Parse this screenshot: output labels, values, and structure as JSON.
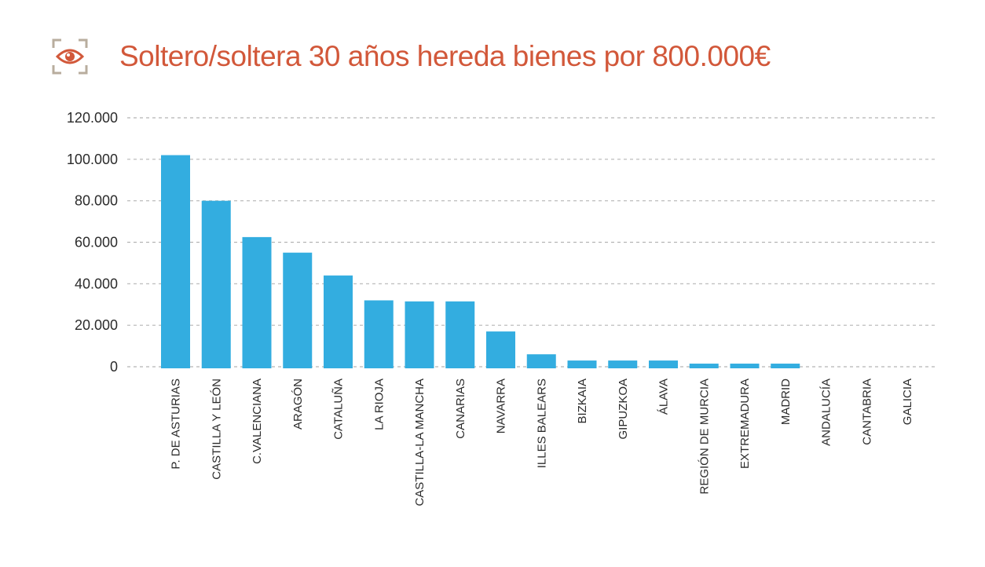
{
  "header": {
    "icon": "eye-icon",
    "title": "Soltero/soltera 30 años hereda bienes por 800.000€"
  },
  "colors": {
    "title": "#d2583a",
    "bar": "#33ade0",
    "grid": "#b5b5b5",
    "icon": "#d2583a",
    "icon_frame": "#b8ad9e"
  },
  "chart_data": {
    "type": "bar",
    "title": "Soltero/soltera 30 años hereda bienes por 800.000€",
    "xlabel": "",
    "ylabel": "",
    "ylim": [
      0,
      120000
    ],
    "yticks": [
      0,
      20000,
      40000,
      60000,
      80000,
      100000,
      120000
    ],
    "ytick_labels": [
      "0",
      "20.000",
      "40.000",
      "60.000",
      "80.000",
      "100.000",
      "120.000"
    ],
    "grid": true,
    "categories": [
      "P. DE ASTURIAS",
      "CASTILLA Y LEÓN",
      "C.VALENCIANA",
      "ARAGÓN",
      "CATALUÑA",
      "LA RIOJA",
      "CASTILLA-LA MANCHA",
      "CANARIAS",
      "NAVARRA",
      "ILLES BALEARS",
      "BIZKAIA",
      "GIPUZKOA",
      "ÁLAVA",
      "REGIÓN DE MURCIA",
      "EXTREMADURA",
      "MADRID",
      "ANDALUCÍA",
      "CANTABRIA",
      "GALICIA"
    ],
    "values": [
      102000,
      80000,
      62500,
      55000,
      44000,
      32000,
      31500,
      31500,
      17000,
      6000,
      3000,
      3000,
      3000,
      1500,
      1500,
      1500,
      0,
      0,
      0
    ]
  }
}
